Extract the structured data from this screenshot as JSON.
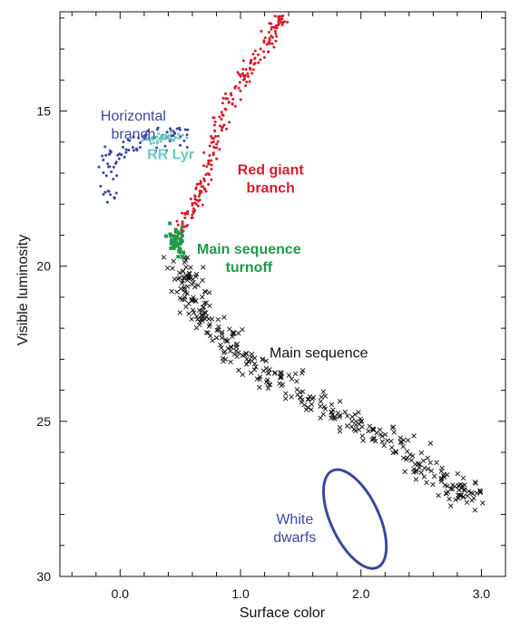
{
  "chart_data": {
    "type": "scatter",
    "title": "",
    "xlabel": "Surface color",
    "ylabel": "Visible luminosity",
    "xlim": [
      -0.5,
      3.2
    ],
    "ylim": [
      30,
      11.8
    ],
    "y_inverted": true,
    "x_ticks": [
      0.0,
      1.0,
      2.0,
      3.0
    ],
    "x_tick_labels": [
      "0.0",
      "1.0",
      "2.0",
      "3.0"
    ],
    "x_minor_step": 0.2,
    "y_ticks": [
      15,
      20,
      25,
      30
    ],
    "y_tick_labels": [
      "15",
      "20",
      "25",
      "30"
    ],
    "y_minor_step": 1,
    "grid": false,
    "colors": {
      "horizontal_branch": "#3b47a0",
      "rr_lyr": "#6cc9bd",
      "red_giant_branch": "#d61c2c",
      "turnoff": "#1e9a4a",
      "main_sequence": "#111111",
      "white_dwarfs": "#3b47a0"
    },
    "series": [
      {
        "key": "horizontal_branch",
        "marker": "dot",
        "path": [
          [
            -0.08,
            17.8
          ],
          [
            -0.1,
            17.0
          ],
          [
            -0.08,
            16.4
          ],
          [
            0.1,
            16.05
          ],
          [
            0.28,
            15.9
          ],
          [
            0.45,
            15.8
          ],
          [
            0.55,
            15.78
          ]
        ],
        "spread": [
          0.04,
          0.18
        ],
        "points_per_segment": 14
      },
      {
        "key": "rr_lyr",
        "marker": "dot",
        "path": [
          [
            0.22,
            15.95
          ],
          [
            0.35,
            15.85
          ],
          [
            0.5,
            15.8
          ]
        ],
        "spread": [
          0.03,
          0.07
        ],
        "points_per_segment": 22
      },
      {
        "key": "red_giant_branch",
        "marker": "dot",
        "path": [
          [
            0.5,
            19.0
          ],
          [
            0.58,
            18.3
          ],
          [
            0.68,
            17.5
          ],
          [
            0.75,
            16.5
          ],
          [
            0.82,
            15.5
          ],
          [
            0.92,
            14.6
          ],
          [
            1.05,
            13.8
          ],
          [
            1.2,
            13.0
          ],
          [
            1.3,
            12.2
          ],
          [
            1.35,
            12.0
          ]
        ],
        "spread": [
          0.035,
          0.12
        ],
        "points_per_segment": 25
      },
      {
        "key": "turnoff",
        "marker": "square",
        "path": [
          [
            0.46,
            18.9
          ],
          [
            0.48,
            19.3
          ],
          [
            0.49,
            19.6
          ]
        ],
        "spread": [
          0.03,
          0.15
        ],
        "points_per_segment": 22
      },
      {
        "key": "main_sequence",
        "marker": "x",
        "path": [
          [
            0.49,
            19.8
          ],
          [
            0.55,
            20.5
          ],
          [
            0.65,
            21.3
          ],
          [
            0.8,
            22.1
          ],
          [
            1.0,
            22.9
          ],
          [
            1.3,
            23.6
          ],
          [
            1.6,
            24.3
          ],
          [
            1.9,
            24.9
          ],
          [
            2.2,
            25.6
          ],
          [
            2.5,
            26.4
          ],
          [
            2.8,
            27.2
          ],
          [
            2.95,
            27.5
          ]
        ],
        "spread": [
          0.07,
          0.22
        ],
        "points_per_segment": 34
      }
    ],
    "white_dwarf_ellipse": {
      "center": [
        1.95,
        28.15
      ],
      "rx_data": 0.2,
      "ry_data": 1.72,
      "rotation_deg": -25
    },
    "annotations": [
      {
        "key": "hb",
        "lines": [
          "Horizontal",
          "branch"
        ],
        "x": 0.11,
        "y": 15.3,
        "color": "#3b47a0",
        "weight": "normal"
      },
      {
        "key": "rr",
        "lines": [
          "RR Lyr"
        ],
        "x": 0.42,
        "y": 16.55,
        "color": "#6cc9bd",
        "weight": "bold"
      },
      {
        "key": "rgb",
        "lines": [
          "Red giant",
          "branch"
        ],
        "x": 1.25,
        "y": 17.05,
        "color": "#d61c2c",
        "weight": "bold"
      },
      {
        "key": "msto",
        "lines": [
          "Main sequence",
          "turnoff"
        ],
        "x": 1.07,
        "y": 19.6,
        "color": "#1e9a4a",
        "weight": "bold"
      },
      {
        "key": "ms",
        "lines": [
          "Main sequence"
        ],
        "x": 1.65,
        "y": 22.95,
        "color": "#111111",
        "weight": "normal"
      },
      {
        "key": "wd",
        "lines": [
          "White",
          "dwarfs"
        ],
        "x": 1.45,
        "y": 28.3,
        "color": "#3b47a0",
        "weight": "normal"
      }
    ]
  }
}
